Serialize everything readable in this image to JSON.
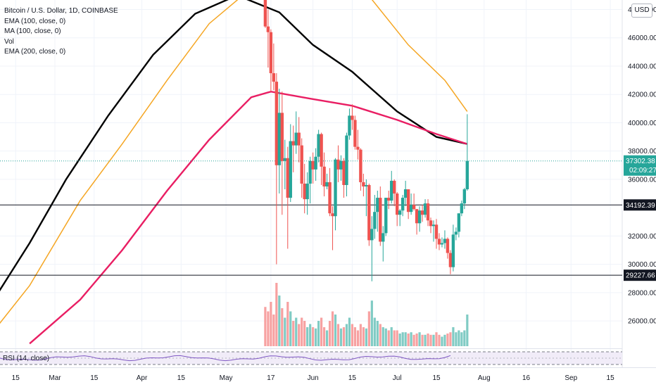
{
  "colors": {
    "up": "#26a69a",
    "down": "#ef5350",
    "vol_up": "#80cbc4",
    "vol_down": "#f7a1a1",
    "ema100": "#000000",
    "ma100": "#f5a623",
    "ema200": "#e91e63",
    "rsi": "#7e57c2",
    "last_price_tag": "#26a69a",
    "level_tag": "#131722"
  },
  "legend": {
    "title": "Bitcoin / U.S. Dollar, 1D, COINBASE",
    "ema100": "EMA (100, close, 0)",
    "ma100": "MA (100, close, 0)",
    "vol": "Vol",
    "ema200": "EMA (200, close, 0)"
  },
  "rsi_label": "RSI (14, close)",
  "currency_button": "USD",
  "last_price": {
    "value": "37302.38",
    "countdown": "02:09:27"
  },
  "levels": [
    {
      "label": "34192.39",
      "value": 34192.39
    },
    {
      "label": "29227.66",
      "value": 29227.66
    }
  ],
  "chart_data": {
    "type": "candlestick",
    "title": "Bitcoin / U.S. Dollar, 1D, COINBASE",
    "xlabel": "",
    "ylabel": "",
    "ylim": [
      24000,
      48500
    ],
    "y_ticks": [
      "48000.00",
      "46000.00",
      "44000.00",
      "42000.00",
      "40000.00",
      "38000.00",
      "36000.00",
      "32000.00",
      "30000.00",
      "28000.00",
      "26000.00"
    ],
    "y_tick_values": [
      48000,
      46000,
      44000,
      42000,
      40000,
      38000,
      36000,
      32000,
      30000,
      28000,
      26000
    ],
    "x_tick_labels": [
      "15",
      "Mar",
      "15",
      "Apr",
      "15",
      "May",
      "17",
      "Jun",
      "15",
      "Jul",
      "15",
      "Aug",
      "16",
      "Sep",
      "15"
    ],
    "x_tick_dates": [
      "2021-02-15",
      "2021-03-01",
      "2021-03-15",
      "2021-04-01",
      "2021-04-15",
      "2021-05-01",
      "2021-05-17",
      "2021-06-01",
      "2021-06-15",
      "2021-07-01",
      "2021-07-15",
      "2021-08-01",
      "2021-08-16",
      "2021-09-01",
      "2021-09-15"
    ],
    "x_range": [
      "2021-02-04",
      "2021-09-30"
    ],
    "grid": true,
    "legend_position": "top-left",
    "candles": [
      {
        "date": "2021-05-15",
        "o": 49300,
        "h": 49700,
        "l": 46700,
        "c": 46800
      },
      {
        "date": "2021-05-16",
        "o": 46800,
        "h": 48000,
        "l": 43900,
        "c": 46400
      },
      {
        "date": "2021-05-17",
        "o": 46400,
        "h": 46600,
        "l": 42200,
        "c": 43500
      },
      {
        "date": "2021-05-18",
        "o": 43500,
        "h": 45600,
        "l": 42300,
        "c": 42900
      },
      {
        "date": "2021-05-19",
        "o": 42900,
        "h": 43500,
        "l": 30000,
        "c": 37000
      },
      {
        "date": "2021-05-20",
        "o": 37000,
        "h": 42400,
        "l": 35000,
        "c": 40700
      },
      {
        "date": "2021-05-21",
        "o": 40700,
        "h": 42200,
        "l": 33500,
        "c": 37300
      },
      {
        "date": "2021-05-22",
        "o": 37300,
        "h": 38800,
        "l": 35300,
        "c": 37500
      },
      {
        "date": "2021-05-23",
        "o": 37500,
        "h": 38300,
        "l": 31100,
        "c": 34700
      },
      {
        "date": "2021-05-24",
        "o": 34700,
        "h": 39900,
        "l": 34400,
        "c": 38700
      },
      {
        "date": "2021-05-25",
        "o": 38700,
        "h": 39800,
        "l": 36500,
        "c": 38400
      },
      {
        "date": "2021-05-26",
        "o": 38400,
        "h": 40800,
        "l": 37800,
        "c": 39300
      },
      {
        "date": "2021-05-27",
        "o": 39300,
        "h": 40400,
        "l": 37200,
        "c": 38400
      },
      {
        "date": "2021-05-28",
        "o": 38400,
        "h": 38900,
        "l": 34700,
        "c": 35700
      },
      {
        "date": "2021-05-29",
        "o": 35700,
        "h": 37100,
        "l": 33600,
        "c": 34600
      },
      {
        "date": "2021-05-30",
        "o": 34600,
        "h": 36500,
        "l": 33500,
        "c": 35700
      },
      {
        "date": "2021-05-31",
        "o": 35700,
        "h": 37600,
        "l": 34300,
        "c": 37300
      },
      {
        "date": "2021-06-01",
        "o": 37300,
        "h": 37900,
        "l": 35700,
        "c": 36700
      },
      {
        "date": "2021-06-02",
        "o": 36700,
        "h": 38200,
        "l": 35900,
        "c": 37600
      },
      {
        "date": "2021-06-03",
        "o": 37600,
        "h": 39500,
        "l": 37200,
        "c": 39200
      },
      {
        "date": "2021-06-04",
        "o": 39200,
        "h": 39300,
        "l": 35600,
        "c": 36900
      },
      {
        "date": "2021-06-05",
        "o": 36900,
        "h": 37900,
        "l": 34800,
        "c": 35500
      },
      {
        "date": "2021-06-06",
        "o": 35500,
        "h": 36400,
        "l": 35300,
        "c": 35800
      },
      {
        "date": "2021-06-07",
        "o": 35800,
        "h": 36800,
        "l": 33400,
        "c": 33600
      },
      {
        "date": "2021-06-08",
        "o": 33600,
        "h": 34100,
        "l": 31000,
        "c": 33400
      },
      {
        "date": "2021-06-09",
        "o": 33400,
        "h": 37500,
        "l": 32400,
        "c": 37400
      },
      {
        "date": "2021-06-10",
        "o": 37400,
        "h": 38400,
        "l": 35800,
        "c": 36700
      },
      {
        "date": "2021-06-11",
        "o": 36700,
        "h": 37700,
        "l": 35900,
        "c": 37300
      },
      {
        "date": "2021-06-12",
        "o": 37300,
        "h": 37500,
        "l": 34700,
        "c": 35600
      },
      {
        "date": "2021-06-13",
        "o": 35600,
        "h": 39300,
        "l": 34800,
        "c": 39100
      },
      {
        "date": "2021-06-14",
        "o": 39100,
        "h": 41000,
        "l": 38800,
        "c": 40500
      },
      {
        "date": "2021-06-15",
        "o": 40500,
        "h": 41300,
        "l": 39500,
        "c": 40200
      },
      {
        "date": "2021-06-16",
        "o": 40200,
        "h": 40500,
        "l": 38100,
        "c": 38300
      },
      {
        "date": "2021-06-17",
        "o": 38300,
        "h": 39500,
        "l": 37400,
        "c": 38100
      },
      {
        "date": "2021-06-18",
        "o": 38100,
        "h": 38200,
        "l": 35200,
        "c": 35800
      },
      {
        "date": "2021-06-19",
        "o": 35800,
        "h": 36400,
        "l": 34800,
        "c": 35500
      },
      {
        "date": "2021-06-20",
        "o": 35500,
        "h": 36000,
        "l": 33400,
        "c": 35600
      },
      {
        "date": "2021-06-21",
        "o": 35600,
        "h": 35700,
        "l": 31300,
        "c": 31700
      },
      {
        "date": "2021-06-22",
        "o": 31700,
        "h": 33400,
        "l": 28800,
        "c": 32500
      },
      {
        "date": "2021-06-23",
        "o": 32500,
        "h": 34900,
        "l": 31800,
        "c": 33700
      },
      {
        "date": "2021-06-24",
        "o": 33700,
        "h": 35200,
        "l": 32300,
        "c": 34700
      },
      {
        "date": "2021-06-25",
        "o": 34700,
        "h": 35500,
        "l": 31300,
        "c": 31600
      },
      {
        "date": "2021-06-26",
        "o": 31600,
        "h": 32700,
        "l": 30200,
        "c": 32200
      },
      {
        "date": "2021-06-27",
        "o": 32200,
        "h": 34700,
        "l": 32000,
        "c": 34700
      },
      {
        "date": "2021-06-28",
        "o": 34700,
        "h": 35200,
        "l": 33900,
        "c": 34500
      },
      {
        "date": "2021-06-29",
        "o": 34500,
        "h": 36600,
        "l": 34300,
        "c": 35900
      },
      {
        "date": "2021-06-30",
        "o": 35900,
        "h": 36000,
        "l": 34100,
        "c": 35000
      },
      {
        "date": "2021-07-01",
        "o": 35000,
        "h": 35100,
        "l": 32700,
        "c": 33500
      },
      {
        "date": "2021-07-02",
        "o": 33500,
        "h": 33900,
        "l": 32700,
        "c": 33800
      },
      {
        "date": "2021-07-03",
        "o": 33800,
        "h": 34900,
        "l": 33400,
        "c": 34700
      },
      {
        "date": "2021-07-04",
        "o": 34700,
        "h": 35900,
        "l": 34100,
        "c": 35300
      },
      {
        "date": "2021-07-05",
        "o": 35300,
        "h": 35300,
        "l": 33200,
        "c": 33700
      },
      {
        "date": "2021-07-06",
        "o": 33700,
        "h": 35000,
        "l": 33500,
        "c": 34200
      },
      {
        "date": "2021-07-07",
        "o": 34200,
        "h": 35000,
        "l": 33800,
        "c": 33900
      },
      {
        "date": "2021-07-08",
        "o": 33900,
        "h": 33900,
        "l": 32100,
        "c": 32900
      },
      {
        "date": "2021-07-09",
        "o": 32900,
        "h": 34100,
        "l": 32300,
        "c": 33800
      },
      {
        "date": "2021-07-10",
        "o": 33800,
        "h": 34200,
        "l": 33000,
        "c": 33500
      },
      {
        "date": "2021-07-11",
        "o": 33500,
        "h": 34600,
        "l": 33300,
        "c": 34300
      },
      {
        "date": "2021-07-12",
        "o": 34300,
        "h": 34600,
        "l": 32700,
        "c": 33100
      },
      {
        "date": "2021-07-13",
        "o": 33100,
        "h": 33300,
        "l": 32200,
        "c": 32700
      },
      {
        "date": "2021-07-14",
        "o": 32700,
        "h": 33100,
        "l": 31600,
        "c": 32800
      },
      {
        "date": "2021-07-15",
        "o": 32800,
        "h": 33200,
        "l": 31100,
        "c": 31800
      },
      {
        "date": "2021-07-16",
        "o": 31800,
        "h": 32200,
        "l": 31000,
        "c": 31400
      },
      {
        "date": "2021-07-17",
        "o": 31400,
        "h": 31900,
        "l": 31200,
        "c": 31500
      },
      {
        "date": "2021-07-18",
        "o": 31500,
        "h": 32400,
        "l": 31100,
        "c": 31800
      },
      {
        "date": "2021-07-19",
        "o": 31800,
        "h": 31900,
        "l": 30400,
        "c": 30800
      },
      {
        "date": "2021-07-20",
        "o": 30800,
        "h": 31000,
        "l": 29300,
        "c": 29800
      },
      {
        "date": "2021-07-21",
        "o": 29800,
        "h": 32800,
        "l": 29500,
        "c": 32100
      },
      {
        "date": "2021-07-22",
        "o": 32100,
        "h": 32600,
        "l": 31700,
        "c": 32300
      },
      {
        "date": "2021-07-23",
        "o": 32300,
        "h": 33600,
        "l": 31900,
        "c": 33600
      },
      {
        "date": "2021-07-24",
        "o": 33600,
        "h": 34500,
        "l": 33400,
        "c": 34300
      },
      {
        "date": "2021-07-25",
        "o": 34300,
        "h": 35400,
        "l": 33900,
        "c": 35300
      },
      {
        "date": "2021-07-26",
        "o": 35300,
        "h": 40600,
        "l": 35200,
        "c": 37302.38
      }
    ],
    "volume_relative": [
      0.62,
      0.55,
      0.7,
      0.5,
      1.0,
      0.8,
      0.6,
      0.45,
      0.7,
      0.55,
      0.4,
      0.45,
      0.35,
      0.45,
      0.4,
      0.3,
      0.35,
      0.3,
      0.28,
      0.4,
      0.45,
      0.3,
      0.25,
      0.4,
      0.55,
      0.5,
      0.35,
      0.28,
      0.3,
      0.35,
      0.45,
      0.35,
      0.3,
      0.25,
      0.35,
      0.3,
      0.28,
      0.55,
      0.72,
      0.45,
      0.4,
      0.35,
      0.3,
      0.28,
      0.25,
      0.3,
      0.25,
      0.25,
      0.2,
      0.22,
      0.22,
      0.2,
      0.22,
      0.18,
      0.2,
      0.22,
      0.18,
      0.18,
      0.2,
      0.18,
      0.18,
      0.22,
      0.18,
      0.15,
      0.18,
      0.2,
      0.22,
      0.3,
      0.22,
      0.25,
      0.22,
      0.25,
      0.5
    ],
    "series": []
  }
}
